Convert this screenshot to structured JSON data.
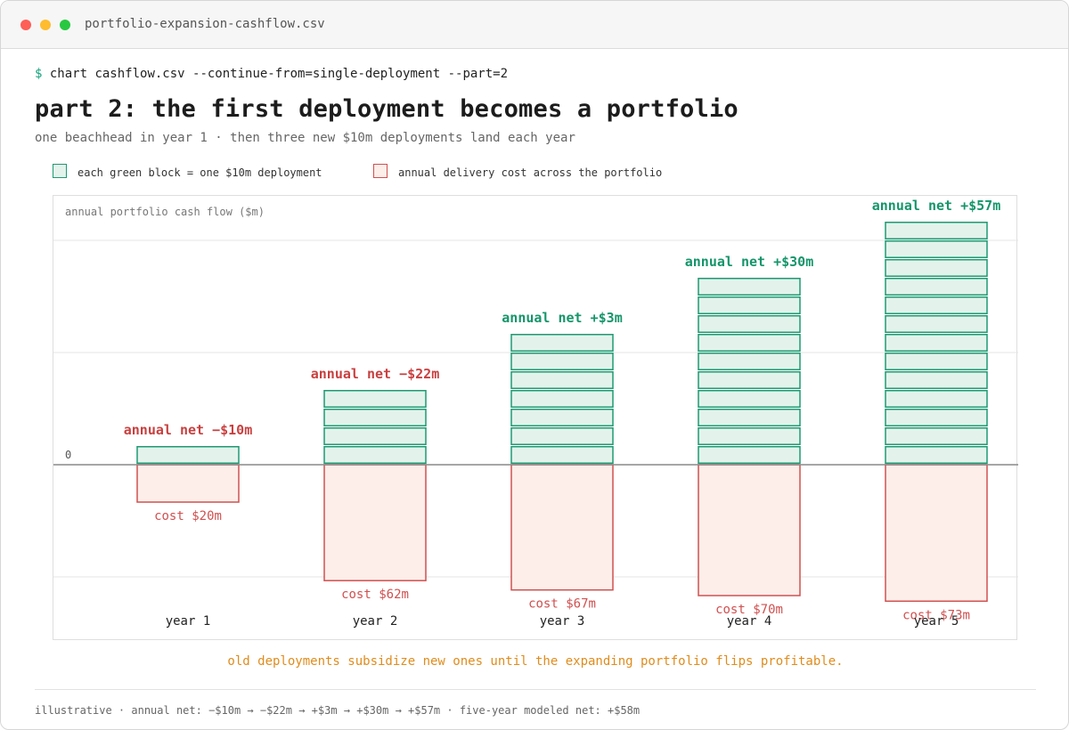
{
  "window": {
    "title": "portfolio-expansion-cashflow.csv"
  },
  "command": {
    "prompt": "$",
    "text": "chart cashflow.csv --continue-from=single-deployment --part=2"
  },
  "heading": {
    "title": "part 2: the first deployment becomes a portfolio",
    "subtitle": "one beachhead in year 1 · then three new $10m deployments land each year"
  },
  "legend": {
    "green_label": "each green block = one $10m deployment",
    "red_label": "annual delivery cost across the portfolio"
  },
  "colors": {
    "green_stroke": "#1e9a72",
    "green_fill": "#e3f3ec",
    "red_stroke": "#d05050",
    "red_fill": "#fdeeea",
    "net_positive": "#16956b",
    "net_negative": "#c94040",
    "zero_line": "#888888",
    "grid": "#e4e4e4",
    "note": "#e08c1c"
  },
  "chart_data": {
    "type": "bar",
    "ylabel": "annual portfolio cash flow ($m)",
    "zero_label": "0",
    "categories": [
      "year 1",
      "year 2",
      "year 3",
      "year 4",
      "year 5"
    ],
    "block_value": 10,
    "series": [
      {
        "name": "each green block = one $10m deployment",
        "blocks": [
          1,
          4,
          7,
          10,
          13
        ],
        "values": [
          10,
          40,
          70,
          100,
          130
        ]
      },
      {
        "name": "annual delivery cost across the portfolio",
        "values": [
          -20,
          -62,
          -67,
          -70,
          -73
        ]
      }
    ],
    "net": [
      -10,
      -22,
      3,
      30,
      57
    ],
    "net_labels": [
      "annual net −$10m",
      "annual net −$22m",
      "annual net +$3m",
      "annual net +$30m",
      "annual net +$57m"
    ],
    "cost_labels": [
      "cost $20m",
      "cost $62m",
      "cost $67m",
      "cost $70m",
      "cost $73m"
    ],
    "gridlines": [
      -60,
      60,
      120
    ],
    "ylim": [
      -90,
      165
    ],
    "grid": true,
    "legend": "top-left"
  },
  "note": "old deployments subsidize new ones until the expanding portfolio flips profitable.",
  "footer": "illustrative · annual net: −$10m → −$22m → +$3m → +$30m → +$57m · five-year modeled net: +$58m"
}
